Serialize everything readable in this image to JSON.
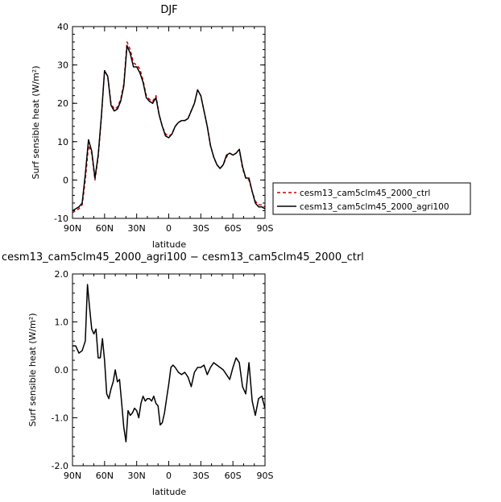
{
  "chart_data": [
    {
      "type": "line",
      "title": "DJF",
      "xlabel": "latitude",
      "ylabel": "Surf sensible heat (W/m²)",
      "x_tick_labels": [
        "90N",
        "60N",
        "30N",
        "0",
        "30S",
        "60S",
        "90S"
      ],
      "y_ticks": [
        -10,
        0,
        10,
        20,
        30,
        40
      ],
      "ylim": [
        -10,
        40
      ],
      "grid": false,
      "legend_placement": "right",
      "series": [
        {
          "name": "cesm13_cam5clm45_2000_ctrl",
          "color": "#cc0000",
          "dash": "dashed",
          "x": [
            90,
            87,
            84,
            81,
            78,
            75,
            72,
            69,
            66,
            63,
            60,
            57,
            54,
            51,
            48,
            45,
            42,
            39,
            36,
            33,
            30,
            27,
            24,
            21,
            18,
            15,
            12,
            9,
            6,
            3,
            0,
            -3,
            -6,
            -9,
            -12,
            -15,
            -18,
            -21,
            -24,
            -27,
            -30,
            -33,
            -36,
            -39,
            -42,
            -45,
            -48,
            -51,
            -54,
            -57,
            -60,
            -63,
            -66,
            -69,
            -72,
            -75,
            -78,
            -81,
            -84,
            -87,
            -90
          ],
          "values": [
            -8.5,
            -8,
            -7.5,
            -6.5,
            0,
            9,
            7,
            0,
            6,
            16,
            28.5,
            27,
            20,
            18.5,
            19,
            21,
            25,
            36,
            34,
            30.5,
            30,
            29,
            26,
            22,
            21,
            20.5,
            22,
            17,
            14,
            12,
            11.5,
            12,
            14,
            15,
            15.5,
            15.5,
            16,
            18,
            20,
            23.5,
            22,
            18,
            14,
            9,
            6,
            4,
            3,
            4,
            6,
            7,
            6.5,
            7,
            8,
            3,
            0.5,
            0,
            -3,
            -5.5,
            -6.5,
            -6.5,
            -7
          ]
        },
        {
          "name": "cesm13_cam5clm45_2000_agri100",
          "color": "#000000",
          "dash": "solid",
          "x": [
            90,
            87,
            84,
            81,
            78,
            75,
            72,
            69,
            66,
            63,
            60,
            57,
            54,
            51,
            48,
            45,
            42,
            39,
            36,
            33,
            30,
            27,
            24,
            21,
            18,
            15,
            12,
            9,
            6,
            3,
            0,
            -3,
            -6,
            -9,
            -12,
            -15,
            -18,
            -21,
            -24,
            -27,
            -30,
            -33,
            -36,
            -39,
            -42,
            -45,
            -48,
            -51,
            -54,
            -57,
            -60,
            -63,
            -66,
            -69,
            -72,
            -75,
            -78,
            -81,
            -84,
            -87,
            -90
          ],
          "values": [
            -8,
            -7.5,
            -7,
            -6,
            1.5,
            10.5,
            7.5,
            0.5,
            6.5,
            16.5,
            28.5,
            27,
            19.5,
            18,
            18.5,
            20.5,
            24.5,
            35,
            33,
            29.5,
            29.5,
            28,
            25.5,
            21.5,
            20.5,
            20,
            21.5,
            17,
            14,
            11.5,
            11,
            12,
            14,
            15,
            15.5,
            15.5,
            16,
            18,
            20,
            23.5,
            22,
            18,
            14,
            9,
            6,
            4,
            3,
            4,
            6.5,
            7,
            6.5,
            7,
            8,
            3.5,
            0.5,
            0.5,
            -3,
            -6,
            -7,
            -7,
            -7.5
          ]
        }
      ]
    },
    {
      "type": "line",
      "title": "cesm13_cam5clm45_2000_agri100 − cesm13_cam5clm45_2000_ctrl",
      "xlabel": "latitude",
      "ylabel": "Surf sensible heat (W/m²)",
      "x_tick_labels": [
        "90N",
        "60N",
        "30N",
        "0",
        "30S",
        "60S",
        "90S"
      ],
      "y_ticks": [
        "-2.0",
        "-1.0",
        "0.0",
        "1.0",
        "2.0"
      ],
      "ylim": [
        -2,
        2
      ],
      "grid": false,
      "series": [
        {
          "color": "#000000",
          "dash": "solid",
          "x": [
            90,
            87,
            84,
            81,
            78,
            76,
            74,
            72,
            70,
            68,
            66,
            64,
            62,
            60,
            58,
            56,
            54,
            52,
            50,
            48,
            46,
            44,
            42,
            40,
            38,
            36,
            34,
            32,
            30,
            28,
            26,
            24,
            22,
            20,
            18,
            16,
            14,
            12,
            10,
            8,
            6,
            4,
            2,
            0,
            -2,
            -4,
            -6,
            -9,
            -12,
            -15,
            -18,
            -21,
            -24,
            -27,
            -30,
            -33,
            -36,
            -39,
            -42,
            -45,
            -48,
            -51,
            -54,
            -57,
            -60,
            -63,
            -66,
            -69,
            -72,
            -75,
            -78,
            -81,
            -84,
            -87,
            -90
          ],
          "values": [
            0.5,
            0.5,
            0.35,
            0.4,
            0.6,
            1.78,
            1.3,
            0.85,
            0.75,
            0.85,
            0.25,
            0.25,
            0.65,
            0.2,
            -0.5,
            -0.6,
            -0.4,
            -0.25,
            0,
            -0.25,
            -0.2,
            -0.7,
            -1.2,
            -1.5,
            -0.85,
            -0.95,
            -0.9,
            -0.8,
            -0.85,
            -1.0,
            -0.7,
            -0.55,
            -0.65,
            -0.6,
            -0.6,
            -0.65,
            -0.55,
            -0.7,
            -0.75,
            -1.15,
            -1.1,
            -0.9,
            -0.6,
            -0.3,
            0.05,
            0.1,
            0.05,
            -0.05,
            -0.1,
            -0.05,
            -0.15,
            -0.35,
            -0.05,
            0.05,
            0.05,
            0.1,
            -0.1,
            0.05,
            0.15,
            0.1,
            0.05,
            0.0,
            -0.1,
            -0.2,
            0.05,
            0.25,
            0.15,
            -0.35,
            -0.5,
            0.15,
            -0.65,
            -0.95,
            -0.6,
            -0.55,
            -0.8
          ]
        }
      ]
    }
  ]
}
